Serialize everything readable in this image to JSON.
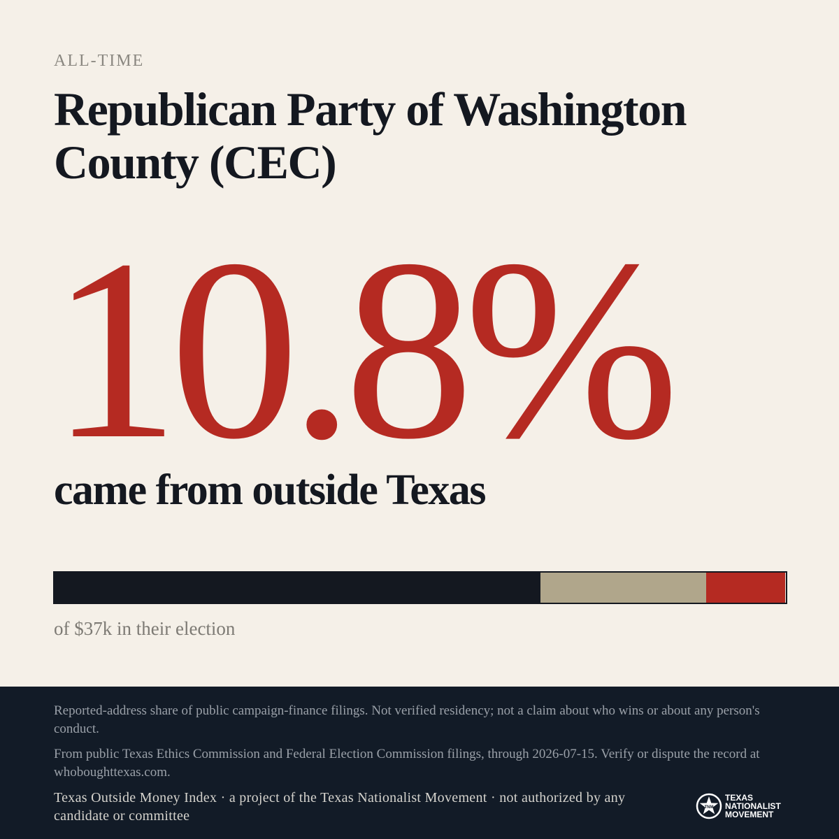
{
  "header": {
    "kicker": "ALL-TIME",
    "title": "Republican Party of Washington County (CEC)"
  },
  "stat": {
    "value": "10.8%",
    "caption": "came from outside Texas"
  },
  "bar": {
    "segments": [
      {
        "name": "dark",
        "share": 0.664,
        "color": "#141820"
      },
      {
        "name": "tan",
        "share": 0.227,
        "color": "#b0a68b"
      },
      {
        "name": "out-of-state",
        "share": 0.108,
        "color": "#b52a22"
      }
    ],
    "caption": "of $37k in their election"
  },
  "footer": {
    "note1": "Reported-address share of public campaign-finance filings. Not verified residency; not a claim about who wins or about any person's conduct.",
    "note2": "From public Texas Ethics Commission and Federal Election Commission filings, through 2026-07-15. Verify or dispute the record at whoboughttexas.com.",
    "credit": "Texas Outside Money Index · a project of the Texas Nationalist Movement · not authorized by any candidate or committee"
  },
  "brand": {
    "line1": "TEXAS",
    "line2": "NATIONALIST",
    "line3": "MOVEMENT",
    "icon": "star-seal-icon"
  },
  "colors": {
    "background": "#f5f0e8",
    "accent": "#b52a22",
    "ink": "#141820",
    "footer": "#121b27"
  }
}
